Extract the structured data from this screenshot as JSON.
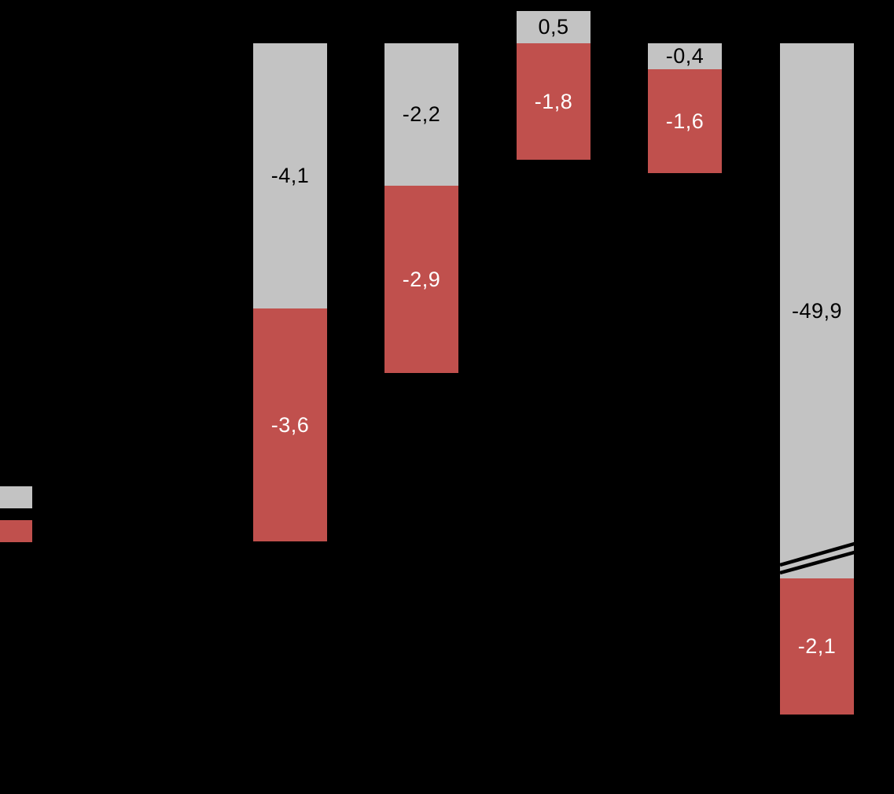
{
  "chart_data": {
    "type": "bar",
    "subtype": "stacked-column",
    "title": "",
    "background": "#000000",
    "axes_visible": false,
    "gridlines": false,
    "decimal_style": "comma",
    "series": [
      {
        "key": "gray",
        "color": "#C3C3C3",
        "label_color": "#000000"
      },
      {
        "key": "red",
        "color": "#C0504D",
        "label_color": "#FFFFFF"
      }
    ],
    "columns": [
      {
        "segments": [
          {
            "series": 0,
            "value": -4.1,
            "label": "-4,1"
          },
          {
            "series": 1,
            "value": -3.6,
            "label": "-3,6"
          }
        ]
      },
      {
        "segments": [
          {
            "series": 0,
            "value": -2.2,
            "label": "-2,2"
          },
          {
            "series": 1,
            "value": -2.9,
            "label": "-2,9"
          }
        ]
      },
      {
        "segments": [
          {
            "series": 0,
            "value": 0.5,
            "label": "0,5"
          },
          {
            "series": 1,
            "value": -1.8,
            "label": "-1,8"
          }
        ]
      },
      {
        "segments": [
          {
            "series": 0,
            "value": -0.4,
            "label": "-0,4"
          },
          {
            "series": 1,
            "value": -1.6,
            "label": "-1,6"
          }
        ]
      },
      {
        "segments": [
          {
            "series": 0,
            "value": -49.9,
            "label": "-49,9",
            "axis_break": true
          },
          {
            "series": 1,
            "value": -2.1,
            "label": "-2,1"
          }
        ]
      }
    ],
    "axis_break_marks": {
      "column_index": 4,
      "style": "double-diagonal-lines",
      "color": "#000000"
    },
    "legend": {
      "position": "left-middle-clipped",
      "items": [
        {
          "series": 0,
          "color": "#C3C3C3"
        },
        {
          "series": 1,
          "color": "#C0504D"
        }
      ]
    }
  }
}
